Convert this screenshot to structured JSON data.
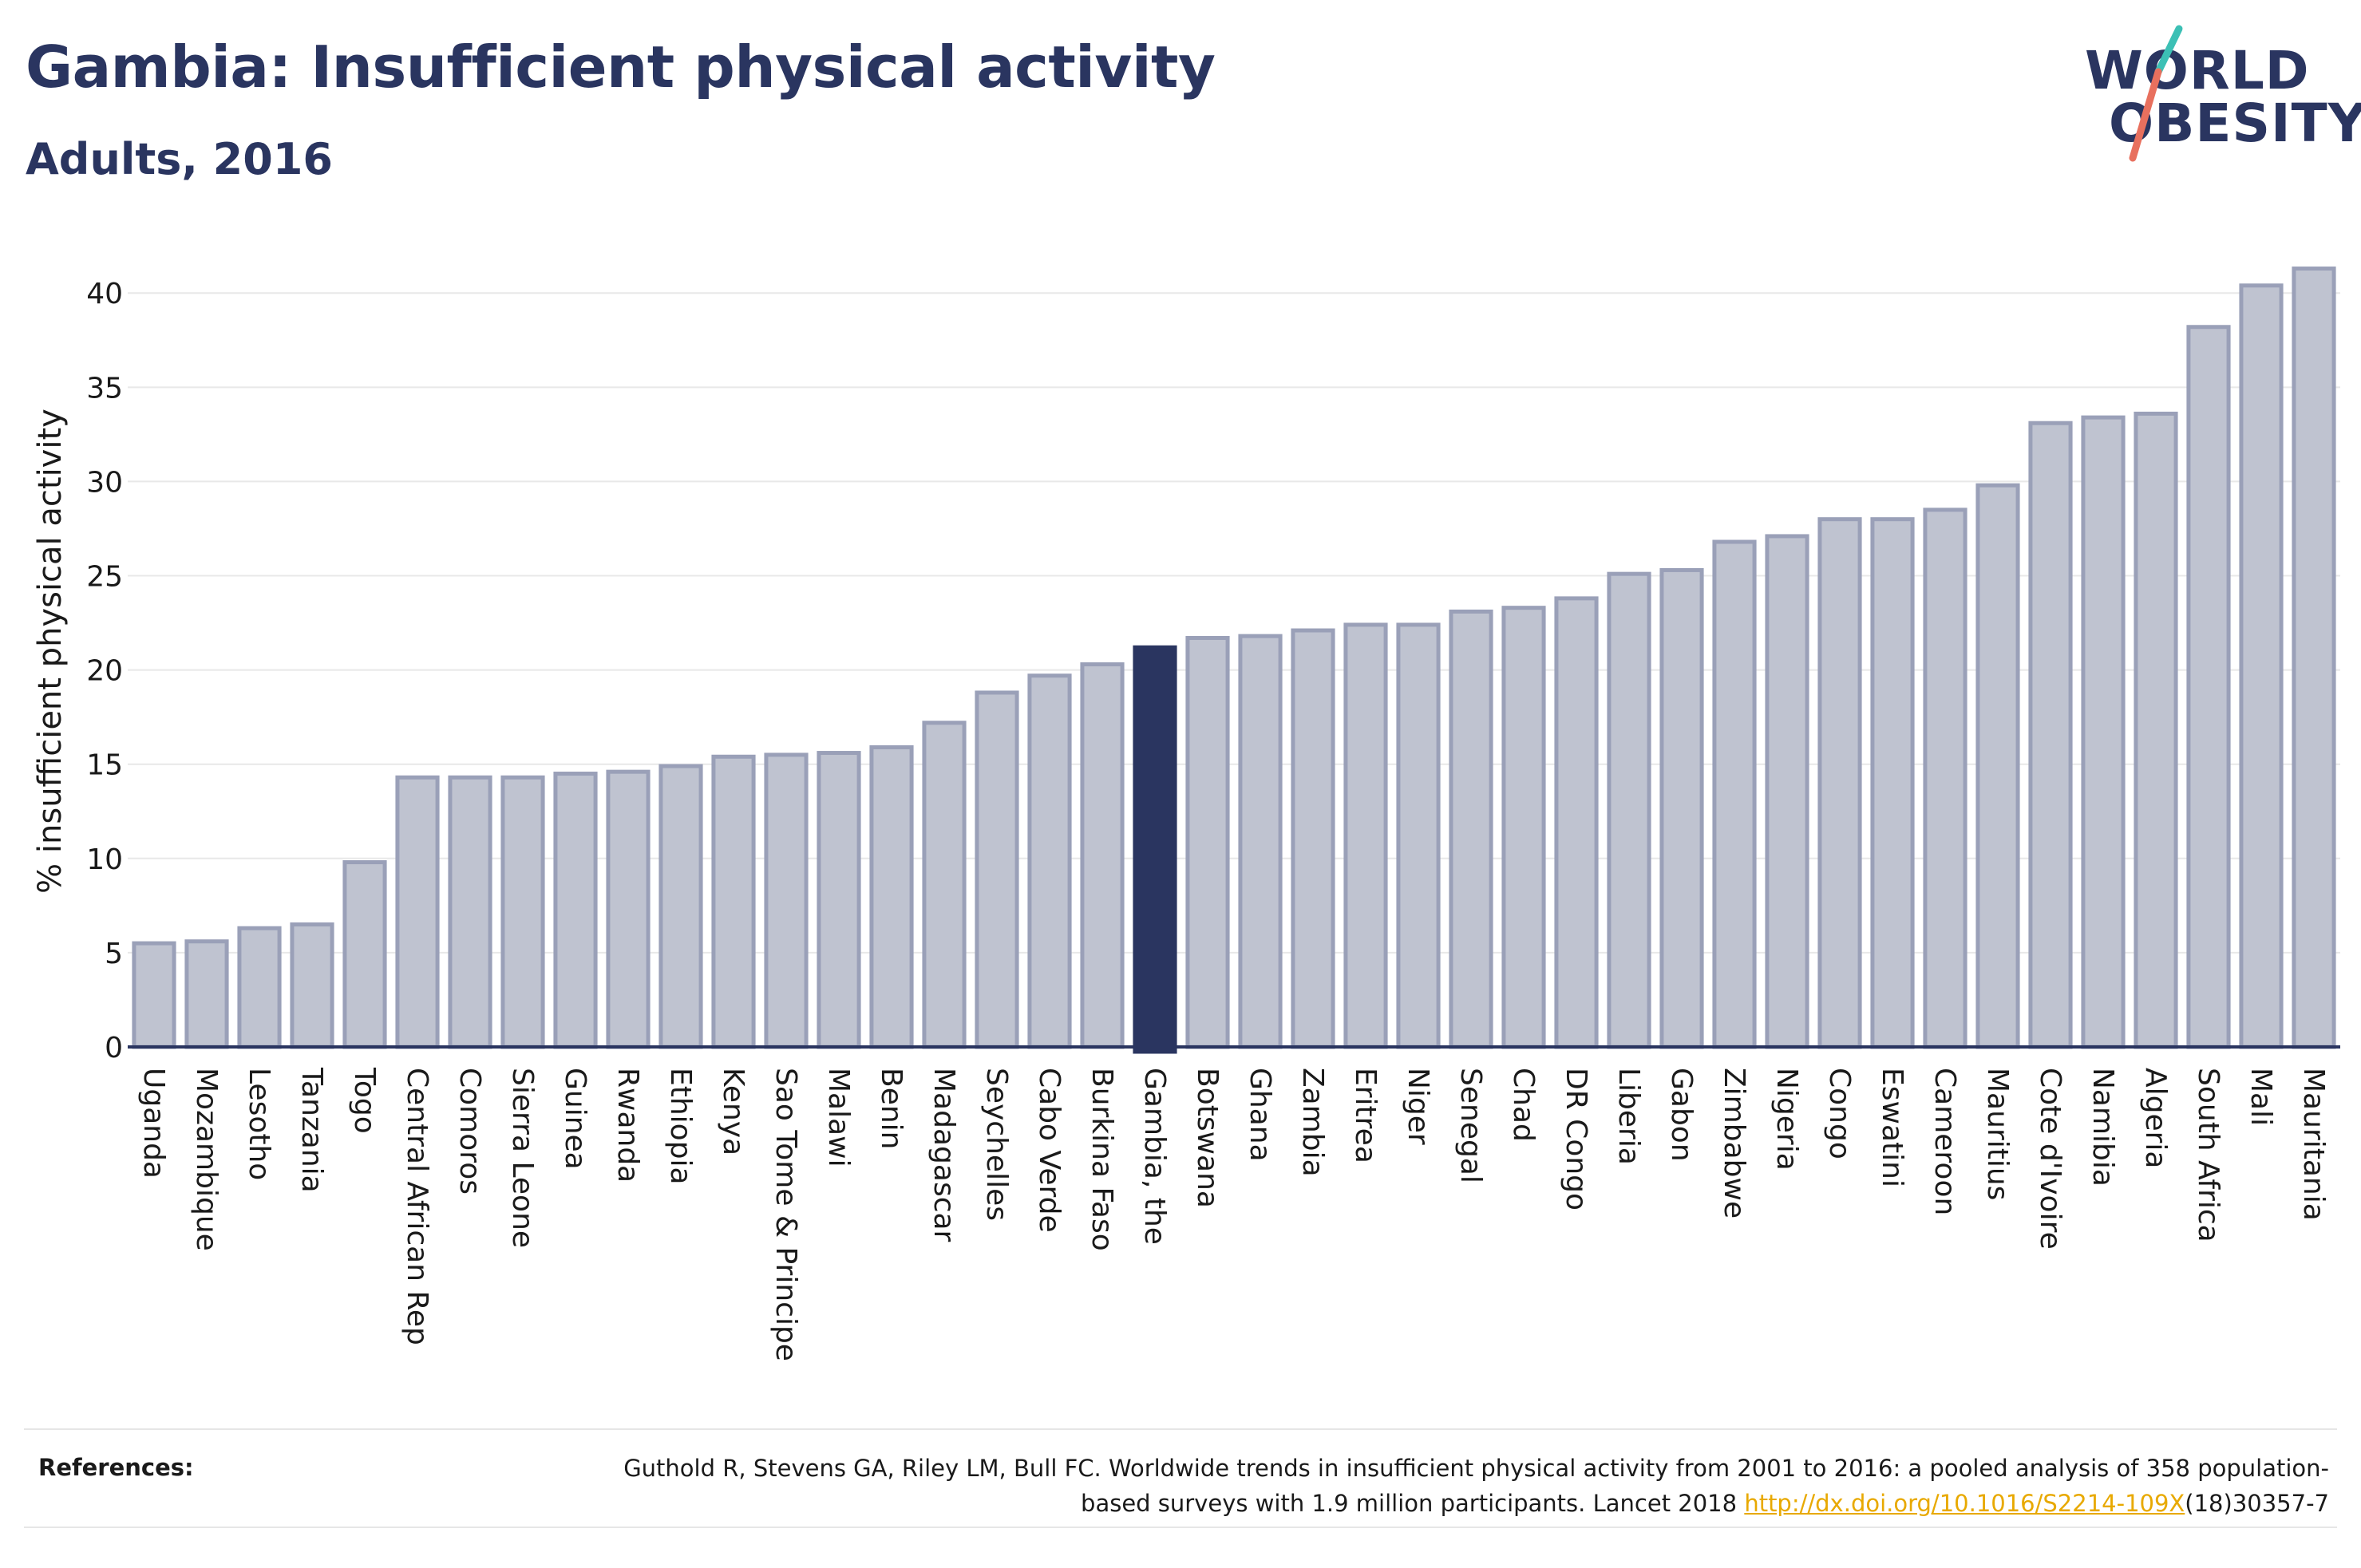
{
  "header": {
    "title": "Gambia: Insufficient physical activity",
    "subtitle": "Adults, 2016"
  },
  "logo": {
    "line1": "WORLD",
    "line2": "OBESITY",
    "slash_colors": [
      "#3cc0b5",
      "#e8705e"
    ]
  },
  "colors": {
    "bar_fill": "#bfc3d0",
    "bar_stroke": "#9aa0b8",
    "highlight": "#2a3560",
    "grid": "#e8e8e8",
    "axis": "#2a3560"
  },
  "chart_data": {
    "type": "bar",
    "title": "Gambia: Insufficient physical activity",
    "subtitle": "Adults, 2016",
    "xlabel": "",
    "ylabel": "% insufficient physical activity",
    "ylim": [
      0,
      42
    ],
    "yticks": [
      0,
      5,
      10,
      15,
      20,
      25,
      30,
      35,
      40
    ],
    "grid": true,
    "highlight": "Gambia, the",
    "categories": [
      "Uganda",
      "Mozambique",
      "Lesotho",
      "Tanzania",
      "Togo",
      "Central African Rep",
      "Comoros",
      "Sierra Leone",
      "Guinea",
      "Rwanda",
      "Ethiopia",
      "Kenya",
      "Sao Tome & Principe",
      "Malawi",
      "Benin",
      "Madagascar",
      "Seychelles",
      "Cabo Verde",
      "Burkina Faso",
      "Gambia, the",
      "Botswana",
      "Ghana",
      "Zambia",
      "Eritrea",
      "Niger",
      "Senegal",
      "Chad",
      "DR Congo",
      "Liberia",
      "Gabon",
      "Zimbabwe",
      "Nigeria",
      "Congo",
      "Eswatini",
      "Cameroon",
      "Mauritius",
      "Cote d'Ivoire",
      "Namibia",
      "Algeria",
      "South Africa",
      "Mali",
      "Mauritania"
    ],
    "values": [
      5.5,
      5.6,
      6.3,
      6.5,
      9.8,
      14.3,
      14.3,
      14.3,
      14.5,
      14.6,
      14.9,
      15.4,
      15.5,
      15.6,
      15.9,
      17.2,
      18.8,
      19.7,
      20.3,
      21.2,
      21.7,
      21.8,
      22.1,
      22.4,
      22.4,
      23.1,
      23.3,
      23.8,
      25.1,
      25.3,
      26.8,
      27.1,
      28.0,
      28.0,
      28.5,
      29.8,
      33.1,
      33.4,
      33.6,
      38.2,
      40.4,
      41.3
    ]
  },
  "references": {
    "label": "References:",
    "text_before": "Guthold R, Stevens GA, Riley LM, Bull FC. Worldwide trends in insufficient physical activity from 2001 to 2016: a pooled analysis of 358 population-based surveys with 1.9 million participants. Lancet 2018 ",
    "link": "http://dx.doi.org/10.1016/S2214-109X",
    "text_after": "(18)30357-7"
  }
}
